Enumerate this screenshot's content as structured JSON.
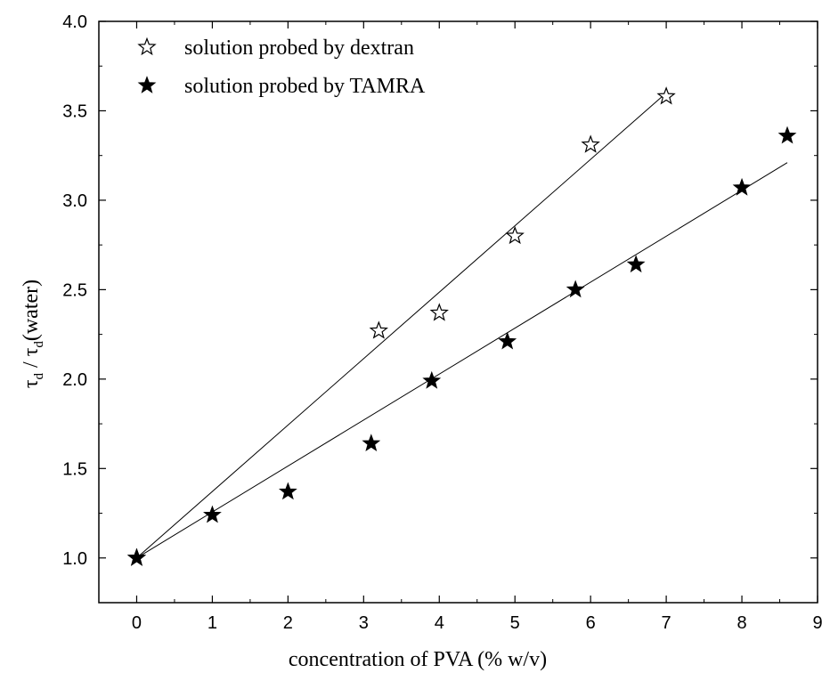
{
  "chart_data": {
    "type": "scatter",
    "xlabel": "concentration of PVA (% w/v)",
    "ylabel": {
      "tau": "τ",
      "sub": "d",
      "sep": " / ",
      "suffix": "(water)"
    },
    "xlim": [
      -0.5,
      9
    ],
    "ylim": [
      0.75,
      4.0
    ],
    "x_ticks": [
      0,
      1,
      2,
      3,
      4,
      5,
      6,
      7,
      8,
      9
    ],
    "x_tick_labels": [
      "0",
      "1",
      "2",
      "3",
      "4",
      "5",
      "6",
      "7",
      "8",
      "9"
    ],
    "y_ticks": [
      1.0,
      1.5,
      2.0,
      2.5,
      3.0,
      3.5,
      4.0
    ],
    "y_tick_labels": [
      "1.0",
      "1.5",
      "2.0",
      "2.5",
      "3.0",
      "3.5",
      "4.0"
    ],
    "grid": false,
    "legend_position": "top-left",
    "series": [
      {
        "name": "solution probed by dextran",
        "marker": "open-star",
        "color": "#000000",
        "points": [
          {
            "x": 0,
            "y": 1.0
          },
          {
            "x": 3.2,
            "y": 2.27
          },
          {
            "x": 4.0,
            "y": 2.37
          },
          {
            "x": 5.0,
            "y": 2.8
          },
          {
            "x": 6.0,
            "y": 3.31
          },
          {
            "x": 7.0,
            "y": 3.58
          }
        ],
        "fit_line": {
          "x": [
            0,
            7.0
          ],
          "y": [
            1.0,
            3.6
          ]
        }
      },
      {
        "name": "solution probed by TAMRA",
        "marker": "filled-star",
        "color": "#000000",
        "points": [
          {
            "x": 0,
            "y": 1.0
          },
          {
            "x": 1.0,
            "y": 1.24
          },
          {
            "x": 2.0,
            "y": 1.37
          },
          {
            "x": 3.1,
            "y": 1.64
          },
          {
            "x": 3.9,
            "y": 1.99
          },
          {
            "x": 4.9,
            "y": 2.21
          },
          {
            "x": 5.8,
            "y": 2.5
          },
          {
            "x": 6.6,
            "y": 2.64
          },
          {
            "x": 8.0,
            "y": 3.07
          },
          {
            "x": 8.6,
            "y": 3.36
          }
        ],
        "fit_line": {
          "x": [
            0,
            8.6
          ],
          "y": [
            1.0,
            3.21
          ]
        }
      }
    ]
  }
}
